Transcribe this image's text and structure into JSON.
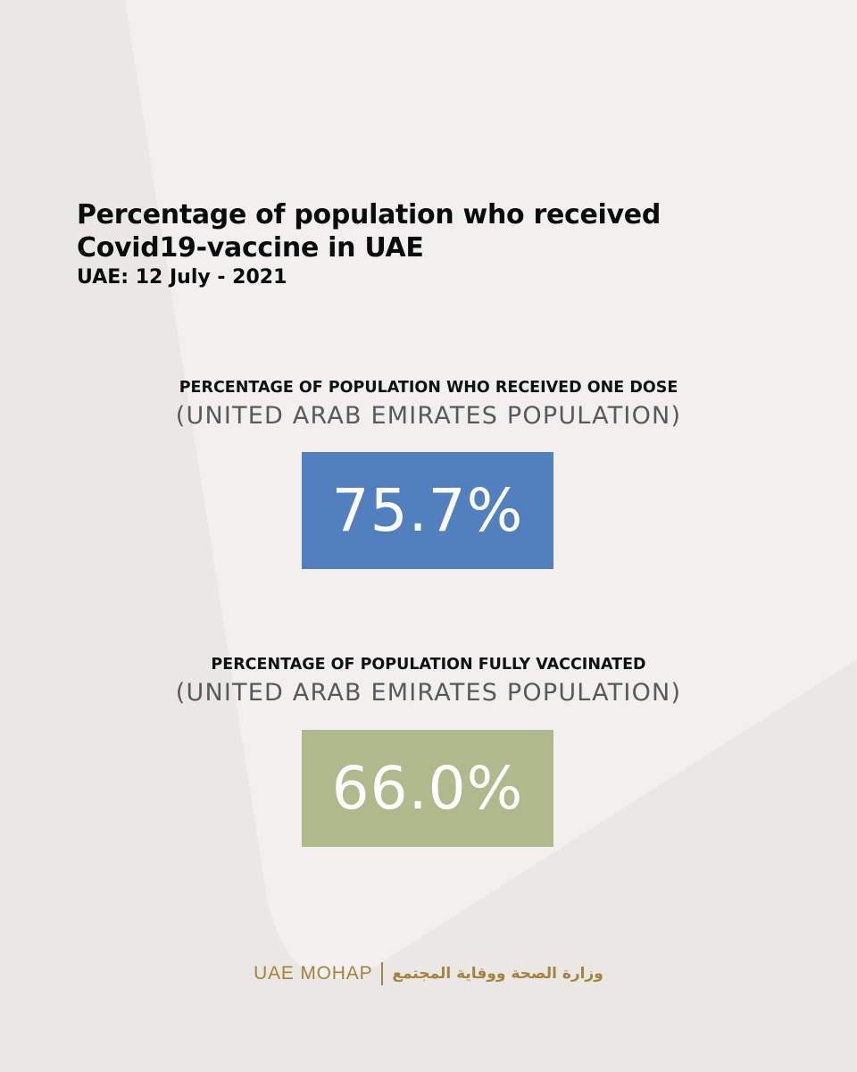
{
  "title_line1": "Percentage of population who received",
  "title_line2": "Covid19-vaccine in UAE",
  "subtitle": "UAE: 12 July - 2021",
  "stats": [
    {
      "heading": "PERCENTAGE OF POPULATION WHO RECEIVED ONE DOSE",
      "subheading": "(UNITED ARAB EMIRATES POPULATION)",
      "value": "75.7%",
      "color": "#5280bf"
    },
    {
      "heading": "PERCENTAGE OF POPULATION FULLY VACCINATED",
      "subheading": "(UNITED ARAB EMIRATES POPULATION)",
      "value": "66.0%",
      "color": "#afb98b"
    }
  ],
  "footer": {
    "org_en": "UAE MOHAP",
    "org_ar": "وزارة الصحة ووقاية المجتمع"
  },
  "colors": {
    "background": "#e9e8e5",
    "panel": "#f1f0ef",
    "footer_gold": "#a4843c"
  }
}
